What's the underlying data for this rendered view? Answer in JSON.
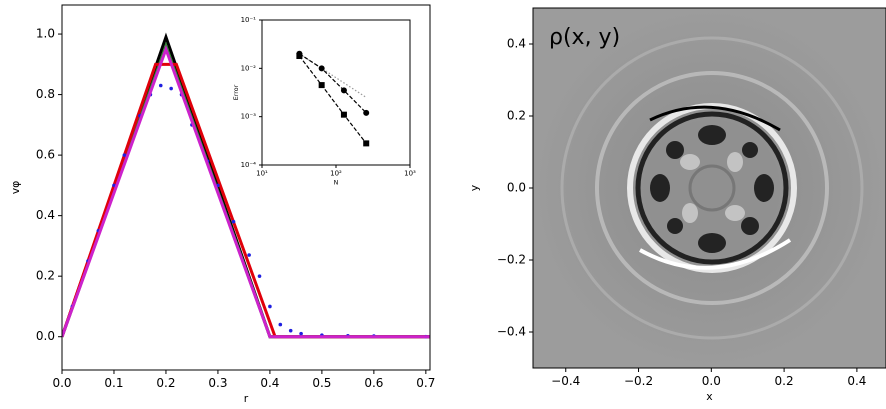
{
  "chart_data": [
    {
      "type": "line",
      "xlabel": "r",
      "ylabel": "vφ",
      "xlim": [
        0,
        0.708
      ],
      "ylim": [
        -0.11,
        1.096
      ],
      "xticks": [
        {
          "value": 0,
          "label": "0.0"
        },
        0.1,
        0.2,
        0.3,
        0.4,
        0.5,
        0.6,
        0.7
      ],
      "yticks": [
        {
          "value": 0,
          "label": "0.0"
        },
        0.2,
        0.4,
        0.6,
        0.8,
        {
          "value": 1,
          "label": "1.0"
        }
      ],
      "series": [
        {
          "color": "#000000",
          "style": "line",
          "x": [
            0,
            0.2,
            0.4,
            0.708
          ],
          "values": [
            0,
            0.99,
            0,
            0
          ]
        },
        {
          "color": "#2e8b2e",
          "style": "line",
          "x": [
            0,
            0.2,
            0.4,
            0.708
          ],
          "values": [
            0,
            0.96,
            0,
            0
          ]
        },
        {
          "color": "#e0000a",
          "style": "line",
          "x": [
            0,
            0.18,
            0.22,
            0.41,
            0.708
          ],
          "values": [
            0,
            0.9,
            0.9,
            0,
            0
          ]
        },
        {
          "color": "#1f1fe0",
          "style": "points",
          "x": [
            0.02,
            0.05,
            0.07,
            0.1,
            0.12,
            0.15,
            0.17,
            0.19,
            0.21,
            0.23,
            0.25,
            0.28,
            0.3,
            0.33,
            0.36,
            0.38,
            0.4,
            0.42,
            0.44,
            0.46,
            0.5,
            0.55,
            0.6,
            0.7
          ],
          "values": [
            0.1,
            0.25,
            0.35,
            0.5,
            0.6,
            0.73,
            0.8,
            0.83,
            0.82,
            0.8,
            0.7,
            0.58,
            0.5,
            0.38,
            0.27,
            0.2,
            0.1,
            0.04,
            0.02,
            0.01,
            0.005,
            0.003,
            0.002,
            0
          ]
        },
        {
          "color": "#cc22cc",
          "style": "line",
          "x": [
            0,
            0.2,
            0.4,
            0.708
          ],
          "values": [
            0,
            0.95,
            0,
            0
          ]
        }
      ]
    },
    {
      "type": "line",
      "xlabel": "N",
      "ylabel": "Error",
      "xlog": true,
      "ylog": true,
      "xlim": [
        10,
        1000
      ],
      "ylim": [
        0.0001,
        0.1
      ],
      "xticks": [
        {
          "value": 10,
          "label": "10¹"
        },
        {
          "value": 100,
          "label": "10²"
        },
        {
          "value": 1000,
          "label": "10³"
        }
      ],
      "yticks": [
        {
          "value": 0.0001,
          "label": "10⁻⁴"
        },
        {
          "value": 0.001,
          "label": "10⁻³"
        },
        {
          "value": 0.01,
          "label": "10⁻²"
        },
        {
          "value": 0.1,
          "label": "10⁻¹"
        }
      ],
      "series": [
        {
          "color": "#999999",
          "style": "dotted",
          "x": [
            32,
            256
          ],
          "values": [
            0.02,
            0.0025
          ]
        },
        {
          "color": "#000000",
          "style": "dashed-circle",
          "x": [
            32,
            64,
            128,
            256
          ],
          "values": [
            0.02,
            0.01,
            0.0035,
            0.0012
          ]
        },
        {
          "color": "#000000",
          "style": "dashed-square",
          "x": [
            32,
            64,
            128,
            256
          ],
          "values": [
            0.018,
            0.0045,
            0.0011,
            0.00028
          ]
        }
      ]
    },
    {
      "type": "image",
      "xlabel": "x",
      "ylabel": "y",
      "annotation": "ρ(x, y)",
      "xlim": [
        -0.49,
        0.48
      ],
      "ylim": [
        -0.5,
        0.5
      ],
      "xticks": [
        {
          "value": -0.4,
          "label": "−0.4"
        },
        {
          "value": -0.2,
          "label": "−0.2"
        },
        {
          "value": 0,
          "label": "0.0"
        },
        0.2,
        0.4
      ],
      "yticks": [
        {
          "value": -0.4,
          "label": "−0.4"
        },
        {
          "value": -0.2,
          "label": "−0.2"
        },
        {
          "value": 0,
          "label": "0.0"
        },
        0.2,
        0.4
      ]
    }
  ]
}
